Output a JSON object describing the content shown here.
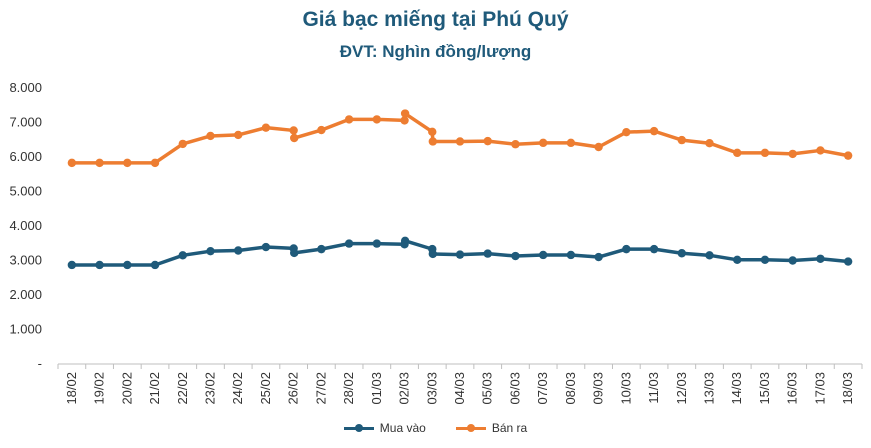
{
  "chart_data": {
    "type": "line",
    "title": "Giá bạc miếng tại Phú Quý",
    "subtitle": "ĐVT: Nghìn đồng/lượng",
    "xlabel": "",
    "ylabel": "",
    "ylim": [
      0,
      8000
    ],
    "yticks": [
      "-",
      "1.000",
      "2.000",
      "3.000",
      "4.000",
      "5.000",
      "6.000",
      "7.000",
      "8.000"
    ],
    "grid": false,
    "legend": "bottom",
    "categories": [
      "18/02",
      "19/02",
      "20/02",
      "21/02",
      "22/02",
      "23/02",
      "24/02",
      "25/02",
      "26/02",
      "27/02",
      "28/02",
      "01/03",
      "02/03",
      "03/03",
      "04/03",
      "05/03",
      "06/03",
      "07/03",
      "08/03",
      "09/03",
      "10/03",
      "11/03",
      "12/03",
      "13/03",
      "14/03",
      "15/03",
      "16/03",
      "17/03",
      "18/03"
    ],
    "series": [
      {
        "name": "Mua vào",
        "color": "#1f5a7a",
        "points": [
          {
            "x": "18/02",
            "y": 2870
          },
          {
            "x": "19/02",
            "y": 2870
          },
          {
            "x": "20/02",
            "y": 2870
          },
          {
            "x": "21/02",
            "y": 2870
          },
          {
            "x": "22/02",
            "y": 3150
          },
          {
            "x": "23/02",
            "y": 3270
          },
          {
            "x": "24/02",
            "y": 3290
          },
          {
            "x": "25/02",
            "y": 3390
          },
          {
            "x": "26/02",
            "y": 3350
          },
          {
            "x": "26/02",
            "y": 3220
          },
          {
            "x": "27/02",
            "y": 3330
          },
          {
            "x": "28/02",
            "y": 3490
          },
          {
            "x": "01/03",
            "y": 3490
          },
          {
            "x": "02/03",
            "y": 3470
          },
          {
            "x": "02/03",
            "y": 3570
          },
          {
            "x": "03/03",
            "y": 3330
          },
          {
            "x": "03/03",
            "y": 3190
          },
          {
            "x": "04/03",
            "y": 3170
          },
          {
            "x": "05/03",
            "y": 3200
          },
          {
            "x": "06/03",
            "y": 3130
          },
          {
            "x": "07/03",
            "y": 3160
          },
          {
            "x": "08/03",
            "y": 3160
          },
          {
            "x": "09/03",
            "y": 3100
          },
          {
            "x": "10/03",
            "y": 3330
          },
          {
            "x": "11/03",
            "y": 3330
          },
          {
            "x": "12/03",
            "y": 3210
          },
          {
            "x": "13/03",
            "y": 3150
          },
          {
            "x": "14/03",
            "y": 3020
          },
          {
            "x": "15/03",
            "y": 3020
          },
          {
            "x": "16/03",
            "y": 3000
          },
          {
            "x": "17/03",
            "y": 3050
          },
          {
            "x": "18/03",
            "y": 2970
          }
        ]
      },
      {
        "name": "Bán ra",
        "color": "#ed7d31",
        "points": [
          {
            "x": "18/02",
            "y": 5830
          },
          {
            "x": "19/02",
            "y": 5830
          },
          {
            "x": "20/02",
            "y": 5830
          },
          {
            "x": "21/02",
            "y": 5830
          },
          {
            "x": "22/02",
            "y": 6380
          },
          {
            "x": "23/02",
            "y": 6610
          },
          {
            "x": "24/02",
            "y": 6640
          },
          {
            "x": "25/02",
            "y": 6850
          },
          {
            "x": "26/02",
            "y": 6770
          },
          {
            "x": "26/02",
            "y": 6550
          },
          {
            "x": "27/02",
            "y": 6780
          },
          {
            "x": "28/02",
            "y": 7090
          },
          {
            "x": "01/03",
            "y": 7090
          },
          {
            "x": "02/03",
            "y": 7060
          },
          {
            "x": "02/03",
            "y": 7260
          },
          {
            "x": "03/03",
            "y": 6730
          },
          {
            "x": "03/03",
            "y": 6450
          },
          {
            "x": "04/03",
            "y": 6450
          },
          {
            "x": "05/03",
            "y": 6460
          },
          {
            "x": "06/03",
            "y": 6370
          },
          {
            "x": "07/03",
            "y": 6410
          },
          {
            "x": "08/03",
            "y": 6410
          },
          {
            "x": "09/03",
            "y": 6290
          },
          {
            "x": "10/03",
            "y": 6720
          },
          {
            "x": "11/03",
            "y": 6750
          },
          {
            "x": "12/03",
            "y": 6490
          },
          {
            "x": "13/03",
            "y": 6400
          },
          {
            "x": "14/03",
            "y": 6120
          },
          {
            "x": "15/03",
            "y": 6120
          },
          {
            "x": "16/03",
            "y": 6090
          },
          {
            "x": "17/03",
            "y": 6190
          },
          {
            "x": "18/03",
            "y": 6040
          }
        ]
      }
    ]
  }
}
